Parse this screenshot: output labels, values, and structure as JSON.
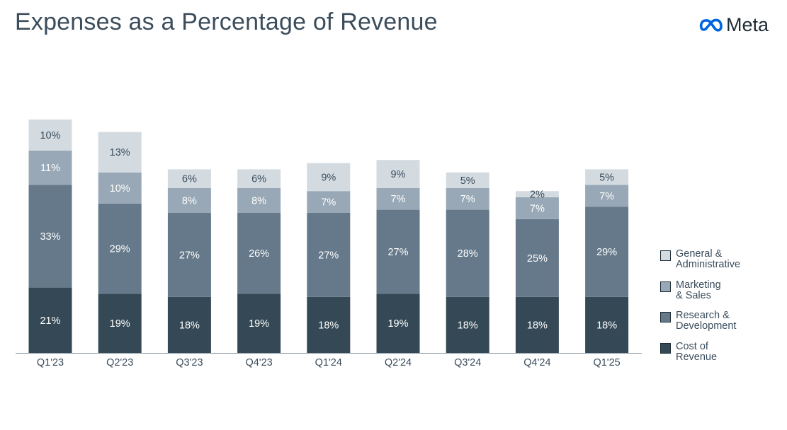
{
  "title": "Expenses as a Percentage of Revenue",
  "logo": {
    "text": "Meta",
    "icon": "meta-infinity-icon",
    "color": "#0064e0"
  },
  "chart_data": {
    "type": "bar",
    "stacked": true,
    "categories": [
      "Q1'23",
      "Q2'23",
      "Q3'23",
      "Q4'23",
      "Q1'24",
      "Q2'24",
      "Q3'24",
      "Q4'24",
      "Q1'25"
    ],
    "series": [
      {
        "name": "Cost of\nRevenue",
        "color": "#344955",
        "label_color": "#ffffff",
        "values": [
          21,
          19,
          18,
          19,
          18,
          19,
          18,
          18,
          18
        ]
      },
      {
        "name": "Research &\nDevelopment",
        "color": "#65798a",
        "label_color": "#ffffff",
        "values": [
          33,
          29,
          27,
          26,
          27,
          27,
          28,
          25,
          29
        ]
      },
      {
        "name": "Marketing\n& Sales",
        "color": "#98a8b6",
        "label_color": "#ffffff",
        "values": [
          11,
          10,
          8,
          8,
          7,
          7,
          7,
          7,
          7
        ]
      },
      {
        "name": "General &\nAdministrative",
        "color": "#d3dbe1",
        "label_color": "#3b4d5c",
        "values": [
          10,
          13,
          6,
          6,
          9,
          9,
          5,
          2,
          5
        ]
      }
    ],
    "value_suffix": "%",
    "legend": "right",
    "grid": false,
    "ylim": [
      0,
      80
    ]
  }
}
